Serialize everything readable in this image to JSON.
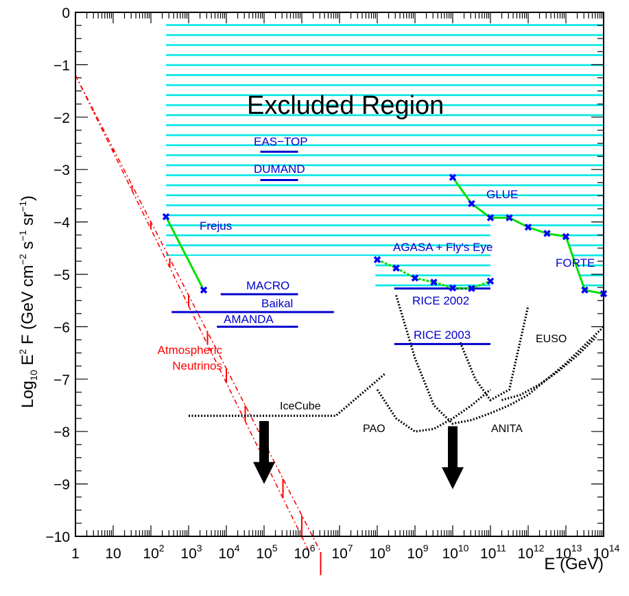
{
  "chart_data": {
    "type": "line",
    "xlabel": "E (GeV)",
    "ylabel": {
      "pre": "Log",
      "sub": "10",
      "mid": " E",
      "sup1": "2",
      "rest": " F (GeV cm",
      "sup2": "−2",
      "s": " s",
      "sup3": "−1",
      "sr": " sr",
      "sup4": "−1",
      "close": ")"
    },
    "x_scale": "log10",
    "x_range_exponent": [
      0,
      14
    ],
    "y_range": [
      -10,
      0
    ],
    "x_ticks": [
      {
        "base": "1",
        "exp": ""
      },
      {
        "base": "10",
        "exp": ""
      },
      {
        "base": "10",
        "exp": "2"
      },
      {
        "base": "10",
        "exp": "3"
      },
      {
        "base": "10",
        "exp": "4"
      },
      {
        "base": "10",
        "exp": "5"
      },
      {
        "base": "10",
        "exp": "6"
      },
      {
        "base": "10",
        "exp": "7"
      },
      {
        "base": "10",
        "exp": "8"
      },
      {
        "base": "10",
        "exp": "9"
      },
      {
        "base": "10",
        "exp": "10"
      },
      {
        "base": "10",
        "exp": "11"
      },
      {
        "base": "10",
        "exp": "12"
      },
      {
        "base": "10",
        "exp": "13"
      },
      {
        "base": "10",
        "exp": "14"
      }
    ],
    "y_ticks": [
      "0",
      "−1",
      "−2",
      "−3",
      "−4",
      "−5",
      "−6",
      "−7",
      "−8",
      "−9",
      "−10"
    ],
    "colors": {
      "excluded": "#00e5e5",
      "limits": "#0000cc",
      "atmospheric": "#ff0000",
      "curve": "#00e000",
      "marker": "#0000ff",
      "future": "#000000"
    },
    "excluded_region": {
      "label": "Excluded Region",
      "main": {
        "x": [
          2.4,
          11.0
        ],
        "y_top": -0.15,
        "y_bottom": -4.65
      },
      "high_e_step": {
        "x": [
          11.0,
          14.0
        ]
      }
    },
    "upper_limits": [
      {
        "name": "EAS−TOP",
        "x": [
          4.9,
          5.9
        ],
        "y": -2.66
      },
      {
        "name": "DUMAND",
        "x": [
          4.9,
          5.9
        ],
        "y": -3.2
      },
      {
        "name": "MACRO",
        "x": [
          3.85,
          5.9
        ],
        "y": -5.38
      },
      {
        "name": "Baikal",
        "x": [
          2.55,
          6.85
        ],
        "y": -5.72
      },
      {
        "name": "AMANDA",
        "x": [
          3.75,
          5.9
        ],
        "y": -6.0
      },
      {
        "name": "RICE 2002",
        "x": [
          8.45,
          11.0
        ],
        "y": -5.27
      },
      {
        "name": "RICE 2003",
        "x": [
          8.45,
          11.0
        ],
        "y": -6.33
      }
    ],
    "series": [
      {
        "name": "Frejus",
        "x": [
          2.4,
          3.4
        ],
        "y": [
          -3.9,
          -5.3
        ]
      },
      {
        "name": "AGASA + Fly's Eye",
        "x": [
          8.0,
          8.5,
          9.0,
          9.5,
          10.0,
          10.5,
          11.0
        ],
        "y": [
          -4.72,
          -4.88,
          -5.07,
          -5.15,
          -5.26,
          -5.27,
          -5.13
        ]
      },
      {
        "name": "GLUE",
        "x": [
          10.0,
          10.5,
          11.0,
          11.5,
          12.0,
          12.5,
          13.0,
          13.5,
          14.0
        ],
        "y": [
          -3.15,
          -3.65,
          -3.92,
          -3.92,
          -4.1,
          -4.22,
          -4.28,
          -5.3,
          -5.37
        ]
      },
      {
        "name": "FORTE"
      }
    ],
    "atmospheric": {
      "label_line1": "Atmospheric",
      "label_line2": "Neutrinos",
      "upper": [
        [
          0.0,
          -1.2
        ],
        [
          6.5,
          -10.3
        ]
      ],
      "lower": [
        [
          0.0,
          -1.2
        ],
        [
          6.2,
          -10.3
        ]
      ]
    },
    "future_sensitivities": [
      {
        "name": "IceCube",
        "x": [
          3.0,
          6.9,
          8.2
        ],
        "y": [
          -7.7,
          -7.7,
          -6.9
        ]
      },
      {
        "name": "PAO",
        "x": [
          8.0,
          8.5,
          9.0,
          9.5,
          10.0,
          10.5,
          11.0
        ],
        "y": [
          -7.2,
          -7.75,
          -8.0,
          -7.95,
          -7.75,
          -7.5,
          -7.2
        ]
      },
      {
        "name": "ANITA",
        "x": [
          8.5,
          9.0,
          9.5,
          10.0,
          10.5,
          11.0,
          11.5,
          12.0,
          12.5,
          13.0,
          13.5,
          14.0
        ],
        "y": [
          -5.4,
          -6.6,
          -7.5,
          -7.85,
          -7.78,
          -7.65,
          -7.5,
          -7.3,
          -7.0,
          -6.7,
          -6.35,
          -6.0
        ]
      },
      {
        "name": "EUSO",
        "x": [
          11.3,
          11.8,
          12.3,
          12.8,
          13.3,
          13.8
        ],
        "y": [
          -7.4,
          -7.3,
          -7.1,
          -6.85,
          -6.55,
          -6.2
        ]
      },
      {
        "name": "EUSO steep",
        "x": [
          10.2,
          10.6,
          11.0,
          11.5,
          12.0
        ],
        "y": [
          -6.3,
          -7.0,
          -7.4,
          -7.2,
          -5.6
        ]
      }
    ],
    "arrows": [
      {
        "x": 5.0,
        "y_from": -7.8,
        "y_to": -9.0
      },
      {
        "x": 10.0,
        "y_from": -7.9,
        "y_to": -9.1
      }
    ]
  }
}
